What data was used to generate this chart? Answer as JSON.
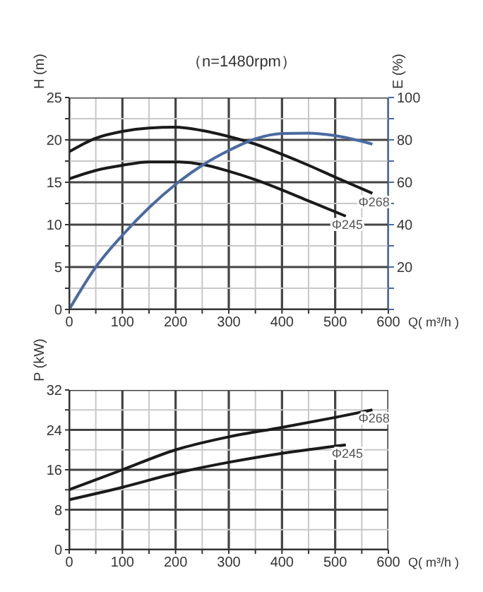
{
  "chart_data": [
    {
      "type": "line",
      "title": "（n=1480rpm）",
      "xlabel": "Q( m³/h )",
      "ylabel": "H (m)",
      "y2label": "E (%)",
      "xlim": [
        0,
        600
      ],
      "xticks": [
        0,
        {
          "value": 50,
          "label": null
        },
        100,
        {
          "value": 150,
          "label": null
        },
        200,
        {
          "value": 250,
          "label": null
        },
        300,
        {
          "value": 350,
          "label": null
        },
        400,
        {
          "value": 450,
          "label": null
        },
        500,
        {
          "value": 550,
          "label": null
        },
        600
      ],
      "ylim": [
        0,
        25
      ],
      "yticks": [
        0,
        {
          "value": 2.5,
          "label": null
        },
        5,
        {
          "value": 7.5,
          "label": null
        },
        10,
        {
          "value": 12.5,
          "label": null
        },
        15,
        {
          "value": 17.5,
          "label": null
        },
        20,
        {
          "value": 22.5,
          "label": null
        },
        25
      ],
      "y2lim": [
        0,
        100
      ],
      "y2ticks": [
        {
          "value": 0,
          "label": null
        },
        {
          "value": 10,
          "label": null
        },
        20,
        {
          "value": 30,
          "label": null
        },
        40,
        {
          "value": 50,
          "label": null
        },
        60,
        {
          "value": 70,
          "label": null
        },
        80,
        {
          "value": 90,
          "label": null
        },
        100
      ],
      "grid": true,
      "series": [
        {
          "name": "Φ268",
          "color": "#1a1a1a",
          "x": [
            0,
            50,
            100,
            150,
            200,
            250,
            300,
            350,
            400,
            450,
            500,
            570
          ],
          "values": [
            18.6,
            20.2,
            21.0,
            21.4,
            21.5,
            21.1,
            20.4,
            19.5,
            18.3,
            17.0,
            15.6,
            13.7
          ]
        },
        {
          "name": "Φ245",
          "color": "#1a1a1a",
          "x": [
            0,
            50,
            100,
            150,
            200,
            250,
            300,
            350,
            400,
            450,
            520
          ],
          "values": [
            15.4,
            16.4,
            17.0,
            17.4,
            17.4,
            17.1,
            16.3,
            15.3,
            14.1,
            12.8,
            11.0
          ]
        },
        {
          "color": "#4a6aa0",
          "axis": "y2",
          "x": [
            0,
            50,
            100,
            150,
            200,
            250,
            300,
            350,
            400,
            450,
            500,
            570
          ],
          "values": [
            0,
            20,
            35,
            48,
            59,
            68,
            75,
            80.5,
            83,
            83.2,
            82,
            78
          ]
        }
      ]
    },
    {
      "type": "line",
      "xlabel": "Q( m³/h )",
      "ylabel": "P (kW)",
      "xlim": [
        0,
        600
      ],
      "xticks": [
        0,
        {
          "value": 50,
          "label": null
        },
        100,
        {
          "value": 150,
          "label": null
        },
        200,
        {
          "value": 250,
          "label": null
        },
        300,
        {
          "value": 350,
          "label": null
        },
        400,
        {
          "value": 450,
          "label": null
        },
        500,
        {
          "value": 550,
          "label": null
        },
        600
      ],
      "ylim": [
        0,
        32
      ],
      "yticks": [
        0,
        {
          "value": 4,
          "label": null
        },
        8,
        {
          "value": 12,
          "label": null
        },
        16,
        {
          "value": 20,
          "label": null
        },
        24,
        {
          "value": 28,
          "label": null
        },
        32
      ],
      "grid": true,
      "series": [
        {
          "name": "Φ268",
          "color": "#1a1a1a",
          "x": [
            0,
            100,
            200,
            300,
            400,
            500,
            570
          ],
          "values": [
            12,
            16,
            20,
            22.6,
            24.5,
            26.5,
            28
          ]
        },
        {
          "name": "Φ245",
          "color": "#1a1a1a",
          "x": [
            0,
            100,
            200,
            300,
            400,
            520
          ],
          "values": [
            10,
            12.5,
            15.3,
            17.5,
            19.3,
            21
          ]
        }
      ]
    }
  ]
}
